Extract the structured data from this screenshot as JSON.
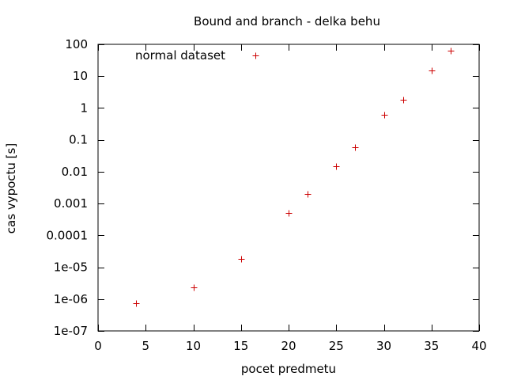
{
  "chart_data": {
    "type": "scatter",
    "title": "Bound and branch - delka behu",
    "xlabel": "pocet predmetu",
    "ylabel": "cas vypoctu [s]",
    "xlim": [
      0,
      40
    ],
    "ylim": [
      1e-07,
      100
    ],
    "y_scale": "log",
    "grid": false,
    "legend_position": "top-left",
    "x_ticks": [
      0,
      5,
      10,
      15,
      20,
      25,
      30,
      35,
      40
    ],
    "x_tick_labels": [
      "0",
      "5",
      "10",
      "15",
      "20",
      "25",
      "30",
      "35",
      "40"
    ],
    "y_ticks": [
      1e-07,
      1e-06,
      1e-05,
      0.0001,
      0.001,
      0.01,
      0.1,
      1,
      10,
      100
    ],
    "y_tick_labels": [
      "1e-07",
      "1e-06",
      "1e-05",
      "0.0001",
      "0.001",
      "0.01",
      "0.1",
      "1",
      "10",
      "100"
    ],
    "series": [
      {
        "name": "normal dataset",
        "color": "#cc0000",
        "marker": "plus",
        "x": [
          4,
          10,
          15,
          20,
          22,
          25,
          27,
          30,
          32,
          35,
          37
        ],
        "y": [
          7.5e-07,
          2.3e-06,
          1.8e-05,
          0.0005,
          0.002,
          0.015,
          0.06,
          0.6,
          1.8,
          15,
          62
        ]
      }
    ]
  }
}
